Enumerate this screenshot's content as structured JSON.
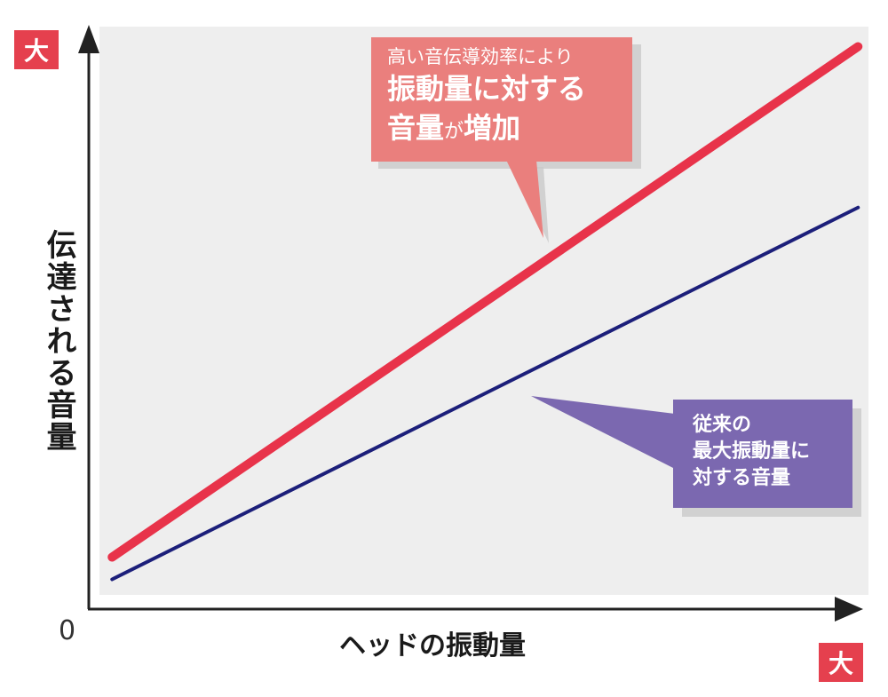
{
  "badges": {
    "y_max": "大",
    "x_max": "大"
  },
  "origin_label": "0",
  "y_axis_label": "伝達される音量",
  "x_axis_label": "ヘッドの振動量",
  "callout_red": {
    "line1": "高い音伝導効率により",
    "line2": "振動量に対する",
    "line3_a": "音量",
    "line3_b": "が",
    "line3_c": "増加"
  },
  "callout_purple": {
    "line1": "従来の",
    "line2": "最大振動量に",
    "line3": "対する音量"
  },
  "colors": {
    "red_series": "#e8334a",
    "blue_series": "#1c1f7a",
    "red_callout": "#ea7f7d",
    "purple_callout": "#7b68b0",
    "plot_bg": "#eeeeee"
  },
  "chart_data": {
    "type": "line",
    "x_scale": "qualitative",
    "y_scale": "qualitative",
    "series": [
      {
        "color": "#e8334a",
        "x": [
          0.03,
          0.99
        ],
        "y": [
          0.06,
          0.98
        ]
      },
      {
        "color": "#1c1f7a",
        "x": [
          0.03,
          0.99
        ],
        "y": [
          0.02,
          0.69
        ]
      }
    ]
  }
}
